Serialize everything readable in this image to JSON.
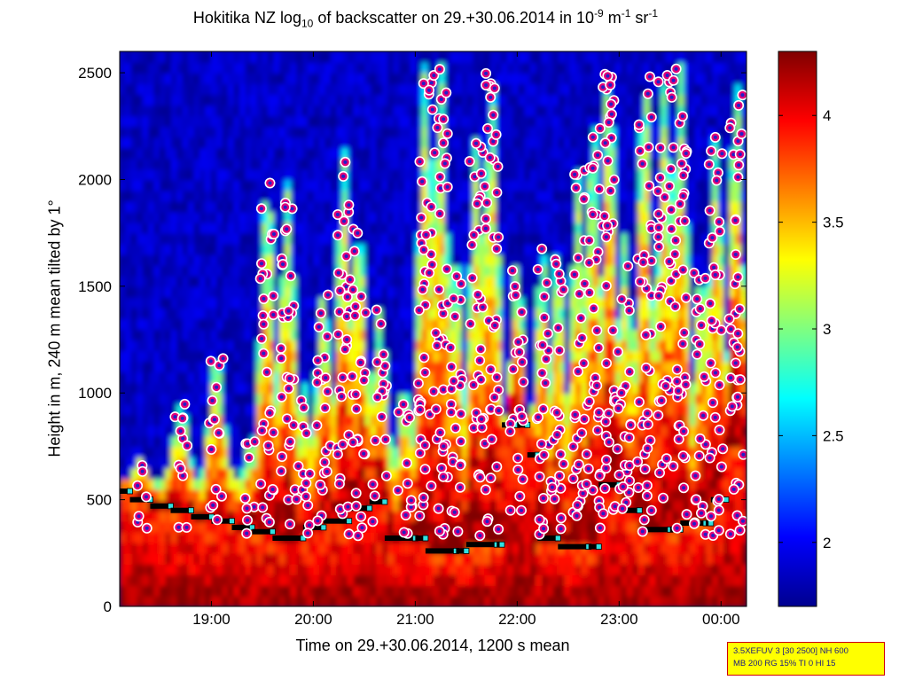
{
  "figure": {
    "title_main": "Hokitika NZ log",
    "title_log_base": "10",
    "title_mid": " of backscatter on 29.+30.06.2014 in 10",
    "title_exp1": "-9",
    "title_unit1": " m",
    "title_exp2": "-1",
    "title_unit2": " sr",
    "title_exp3": "-1",
    "info_line1": "3.5XEFUV 3 [30 2500] NH 600",
    "info_line2": "MB 200 RG 15% TI 0 HI 15"
  },
  "chart_data": {
    "type": "heatmap",
    "title": "Hokitika NZ log10 of backscatter on 29.+30.06.2014 in 10-9 m-1 sr-1",
    "xlabel": "Time on 29.+30.06.2014, 1200 s mean",
    "ylabel": "Height in m, 240 m mean tilted by 1°",
    "x_range_hours": [
      18.1,
      24.25
    ],
    "x_ticks": [
      {
        "h": 19,
        "label": "19:00"
      },
      {
        "h": 20,
        "label": "20:00"
      },
      {
        "h": 21,
        "label": "21:00"
      },
      {
        "h": 22,
        "label": "22:00"
      },
      {
        "h": 23,
        "label": "23:00"
      },
      {
        "h": 24,
        "label": "00:00"
      }
    ],
    "ylim": [
      0,
      2600
    ],
    "y_ticks": [
      0,
      500,
      1000,
      1500,
      2000,
      2500
    ],
    "colorbar": {
      "range": [
        1.7,
        4.3
      ],
      "ticks": [
        2,
        2.5,
        3,
        3.5,
        4
      ],
      "colormap": "jet"
    },
    "colors": {
      "dot_fill": "#e0007a",
      "dot_edge": "#ffffff",
      "dot_center": "#2020c8",
      "bar": "#000000",
      "square": "#30e0e0"
    },
    "layer_heights": [
      {
        "t": 18.1,
        "h": 540
      },
      {
        "t": 18.2,
        "h": 500
      },
      {
        "t": 18.4,
        "h": 470
      },
      {
        "t": 18.6,
        "h": 450
      },
      {
        "t": 18.8,
        "h": 420
      },
      {
        "t": 19.0,
        "h": 400
      },
      {
        "t": 19.2,
        "h": 370
      },
      {
        "t": 19.4,
        "h": 350
      },
      {
        "t": 19.6,
        "h": 320
      },
      {
        "t": 19.9,
        "h": 370
      },
      {
        "t": 20.1,
        "h": 400
      },
      {
        "t": 20.35,
        "h": 460
      },
      {
        "t": 20.55,
        "h": 490
      },
      {
        "t": 20.7,
        "h": 320
      },
      {
        "t": 21.0,
        "h": 320
      },
      {
        "t": 21.1,
        "h": 260
      },
      {
        "t": 21.4,
        "h": 260
      },
      {
        "t": 21.5,
        "h": 290
      },
      {
        "t": 21.8,
        "h": 290
      },
      {
        "t": 21.85,
        "h": 850
      },
      {
        "t": 22.0,
        "h": 850
      },
      {
        "t": 22.1,
        "h": 710
      },
      {
        "t": 22.2,
        "h": 320
      },
      {
        "t": 22.4,
        "h": 280
      },
      {
        "t": 22.7,
        "h": 280
      },
      {
        "t": 22.8,
        "h": 570
      },
      {
        "t": 23.0,
        "h": 450
      },
      {
        "t": 23.2,
        "h": 360
      },
      {
        "t": 23.5,
        "h": 360
      },
      {
        "t": 23.6,
        "h": 390
      },
      {
        "t": 23.85,
        "h": 390
      },
      {
        "t": 23.9,
        "h": 500
      },
      {
        "t": 24.05,
        "h": 750
      }
    ],
    "plumes": [
      {
        "t": 18.3,
        "top": 700
      },
      {
        "t": 18.7,
        "top": 950
      },
      {
        "t": 19.05,
        "top": 1200
      },
      {
        "t": 19.4,
        "top": 800
      },
      {
        "t": 19.55,
        "top": 2000
      },
      {
        "t": 19.75,
        "top": 2000
      },
      {
        "t": 19.9,
        "top": 1050
      },
      {
        "t": 20.1,
        "top": 1500
      },
      {
        "t": 20.3,
        "top": 2150
      },
      {
        "t": 20.45,
        "top": 1800
      },
      {
        "t": 20.65,
        "top": 1400
      },
      {
        "t": 20.9,
        "top": 1050
      },
      {
        "t": 21.1,
        "top": 2550
      },
      {
        "t": 21.25,
        "top": 2550
      },
      {
        "t": 21.4,
        "top": 1700
      },
      {
        "t": 21.6,
        "top": 2200
      },
      {
        "t": 21.75,
        "top": 2500
      },
      {
        "t": 22.0,
        "top": 1650
      },
      {
        "t": 22.25,
        "top": 1700
      },
      {
        "t": 22.4,
        "top": 1700
      },
      {
        "t": 22.6,
        "top": 2050
      },
      {
        "t": 22.75,
        "top": 2300
      },
      {
        "t": 22.9,
        "top": 2550
      },
      {
        "t": 23.05,
        "top": 1750
      },
      {
        "t": 23.25,
        "top": 2500
      },
      {
        "t": 23.45,
        "top": 2500
      },
      {
        "t": 23.6,
        "top": 2550
      },
      {
        "t": 23.8,
        "top": 1600
      },
      {
        "t": 23.95,
        "top": 2200
      },
      {
        "t": 24.15,
        "top": 2500
      }
    ]
  }
}
